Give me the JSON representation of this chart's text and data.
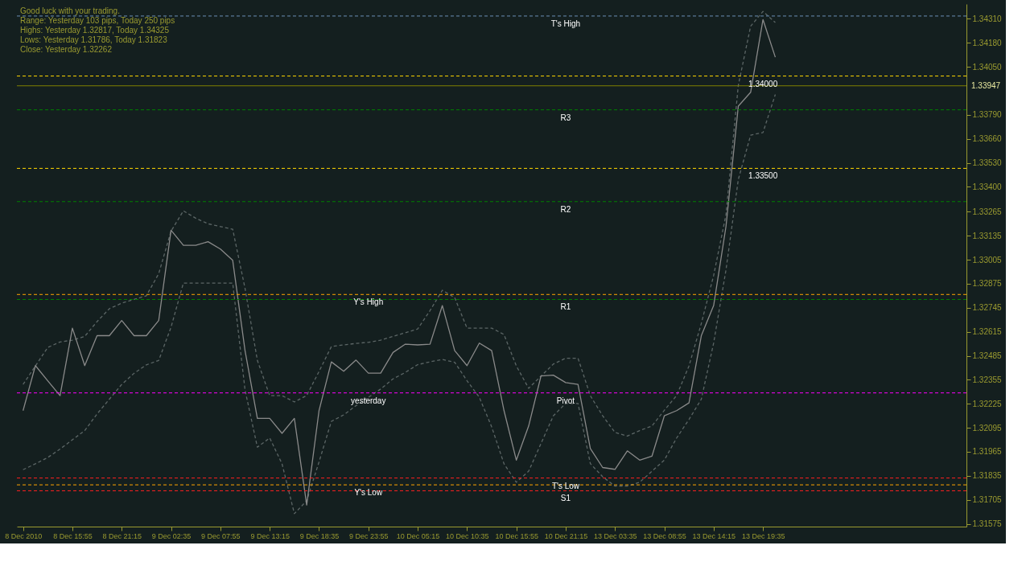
{
  "chart_data": {
    "type": "line",
    "categories": [
      "8 Dec 2010",
      null,
      null,
      null,
      "8 Dec 15:55",
      null,
      null,
      null,
      "8 Dec 21:15",
      null,
      null,
      null,
      "9 Dec 02:35",
      null,
      null,
      null,
      "9 Dec 07:55",
      null,
      null,
      null,
      "9 Dec 13:15",
      null,
      null,
      null,
      "9 Dec 18:35",
      null,
      null,
      null,
      "9 Dec 23:55",
      null,
      null,
      null,
      "10 Dec 05:15",
      null,
      null,
      null,
      "10 Dec 10:35",
      null,
      null,
      null,
      "10 Dec 15:55",
      null,
      null,
      null,
      "10 Dec 21:15",
      null,
      null,
      null,
      "13 Dec 03:35",
      null,
      null,
      null,
      "13 Dec 08:55",
      null,
      null,
      null,
      "13 Dec 14:15",
      null,
      null,
      null,
      "13 Dec 19:35",
      null,
      null,
      null,
      null,
      null,
      null,
      null,
      null,
      null,
      null,
      null,
      null,
      null,
      null,
      null,
      null
    ],
    "ylim": [
      1.3156,
      1.3439
    ],
    "yticks": [
      {
        "value": 1.3431,
        "label": "1.34310"
      },
      {
        "value": 1.3418,
        "label": "1.34180"
      },
      {
        "value": 1.3405,
        "label": "1.34050"
      },
      {
        "value": 1.3379,
        "label": "1.33790"
      },
      {
        "value": 1.3366,
        "label": "1.33660"
      },
      {
        "value": 1.3353,
        "label": "1.33530"
      },
      {
        "value": 1.334,
        "label": "1.33400"
      },
      1.33265,
      1.33135,
      1.33005,
      1.32875,
      1.32745,
      1.32615,
      1.32485,
      1.32355,
      1.32225,
      1.32095,
      1.31965,
      1.31835,
      1.31705,
      1.31575
    ],
    "grid": false,
    "series": [
      {
        "color": "#5c6666",
        "line_style": "dashed",
        "values": [
          1.3233,
          1.3243,
          1.3253,
          1.3256,
          1.3257,
          1.3259,
          1.3267,
          1.3274,
          1.3277,
          1.3279,
          1.3281,
          1.3293,
          1.3316,
          1.3327,
          1.3323,
          1.332,
          1.33185,
          1.3317,
          1.3285,
          1.3246,
          1.32269,
          1.32269,
          1.32235,
          1.3227,
          1.324,
          1.32535,
          1.32544,
          1.32552,
          1.32558,
          1.3257,
          1.3259,
          1.3261,
          1.3263,
          1.3273,
          1.3284,
          1.328,
          1.32635,
          1.32635,
          1.32635,
          1.326,
          1.3243,
          1.32309,
          1.32375,
          1.3244,
          1.32472,
          1.32472,
          1.32269,
          1.3216,
          1.3207,
          1.3205,
          1.3208,
          1.32105,
          1.3219,
          1.3227,
          1.3243,
          1.3266,
          1.3292,
          1.3325,
          1.3395,
          1.3427,
          1.3435,
          1.3429,
          null,
          null,
          null,
          null,
          null,
          null,
          null,
          null,
          null,
          null,
          null,
          null,
          null,
          null,
          null
        ]
      },
      {
        "color": "#5c6666",
        "line_style": "dashed",
        "values": [
          1.31868,
          1.319,
          1.31934,
          1.3198,
          1.3203,
          1.3208,
          1.3217,
          1.3225,
          1.3233,
          1.3239,
          1.32436,
          1.3246,
          1.3264,
          1.32879,
          1.32879,
          1.32879,
          1.32879,
          1.32879,
          1.323,
          1.3199,
          1.3204,
          1.319,
          1.3163,
          1.317,
          1.3191,
          1.3213,
          1.32165,
          1.32215,
          1.3226,
          1.32305,
          1.3236,
          1.32395,
          1.32437,
          1.32452,
          1.32465,
          1.3245,
          1.3235,
          1.3226,
          1.321,
          1.319,
          1.318,
          1.3186,
          1.3201,
          1.3216,
          1.32227,
          1.32227,
          1.31901,
          1.3183,
          1.31779,
          1.31779,
          1.318,
          1.3186,
          1.3192,
          1.3204,
          1.3214,
          1.3225,
          1.32554,
          1.3295,
          1.3344,
          1.3368,
          1.33694,
          1.339,
          null,
          null,
          null,
          null,
          null,
          null,
          null,
          null,
          null,
          null,
          null,
          null,
          null,
          null,
          null
        ]
      },
      {
        "color": "#8a8a8a",
        "line_style": "solid",
        "values": [
          1.32188,
          1.32432,
          1.3235,
          1.32269,
          1.32635,
          1.32432,
          1.32594,
          1.32594,
          1.32676,
          1.32594,
          1.32594,
          1.32676,
          1.33165,
          1.33083,
          1.33083,
          1.33103,
          1.33063,
          1.33002,
          1.32513,
          1.32146,
          1.32146,
          1.32065,
          1.32146,
          1.31677,
          1.32188,
          1.32452,
          1.32401,
          1.32462,
          1.32391,
          1.32391,
          1.32503,
          1.32548,
          1.32544,
          1.32548,
          1.32757,
          1.32513,
          1.32432,
          1.32554,
          1.32513,
          1.32188,
          1.3192,
          1.32105,
          1.32376,
          1.3238,
          1.3234,
          1.3233,
          1.31983,
          1.3188,
          1.3187,
          1.3197,
          1.3192,
          1.31942,
          1.3216,
          1.32188,
          1.3223,
          1.32594,
          1.32757,
          1.33185,
          1.33837,
          1.33912,
          1.34306,
          1.34102,
          null,
          null,
          null,
          null,
          null,
          null,
          null,
          null,
          null,
          null,
          null,
          null,
          null,
          null,
          null
        ]
      }
    ],
    "ref_lines": [
      {
        "axis": "y",
        "value": 1.34325,
        "color": "#6a8fb5",
        "line_style": "dashed"
      },
      {
        "axis": "y",
        "value": 1.34,
        "color": "#ffd700",
        "line_style": "dashed"
      },
      {
        "axis": "y",
        "value": 1.33947,
        "color": "#808000",
        "line_style": "solid",
        "label": "1.33947"
      },
      {
        "axis": "y",
        "value": 1.33817,
        "color": "#008000",
        "line_style": "dashed"
      },
      {
        "axis": "y",
        "value": 1.335,
        "color": "#ffd700",
        "line_style": "dashed"
      },
      {
        "axis": "y",
        "value": 1.3332,
        "color": "#008000",
        "line_style": "dashed"
      },
      {
        "axis": "y",
        "value": 1.32817,
        "color": "#ffa500",
        "line_style": "dashed"
      },
      {
        "axis": "y",
        "value": 1.3279,
        "color": "#008000",
        "line_style": "dashed"
      },
      {
        "axis": "y",
        "value": 1.32284,
        "color": "#ff00ff",
        "line_style": "dashed"
      },
      {
        "axis": "y",
        "value": 1.31823,
        "color": "#ff2020",
        "line_style": "dashed"
      },
      {
        "axis": "y",
        "value": 1.31786,
        "color": "#ffa500",
        "line_style": "dashed"
      },
      {
        "axis": "y",
        "value": 1.31754,
        "color": "#ff2020",
        "line_style": "dashed"
      }
    ],
    "annotations": [
      "Good luck with your trading.",
      "Range: Yesterday 103 pips, Today 250 pips",
      "Highs: Yesterday 1.32817, Today 1.34325",
      "Lows:  Yesterday 1.31786, Today 1.31823",
      "Close: Yesterday 1.32262",
      {
        "text": "T's High",
        "x": "10 Dec 21:15",
        "y": 1.34325
      },
      {
        "text": "1.34000",
        "x": "13 Dec 19:35",
        "y": 1.34
      },
      {
        "text": "R3",
        "x": "10 Dec 21:15",
        "y": 1.33817
      },
      {
        "text": "1.33500",
        "x": "13 Dec 19:35",
        "y": 1.335
      },
      {
        "text": "R2",
        "x": "10 Dec 21:15",
        "y": 1.3332
      },
      {
        "text": "Y's High",
        "x": "9 Dec 23:55",
        "y": 1.32817
      },
      {
        "text": "R1",
        "x": "10 Dec 21:15",
        "y": 1.3279
      },
      {
        "text": "yesterday",
        "x": "9 Dec 23:55",
        "y": 1.32284
      },
      {
        "text": "Pivot",
        "x": "10 Dec 21:15",
        "y": 1.32284
      },
      {
        "text": "T's Low",
        "x": "10 Dec 21:15",
        "y": 1.31823
      },
      {
        "text": "Y's Low",
        "x": "9 Dec 23:55",
        "y": 1.31786
      },
      {
        "text": "S1",
        "x": "10 Dec 21:15",
        "y": 1.31754
      }
    ]
  }
}
